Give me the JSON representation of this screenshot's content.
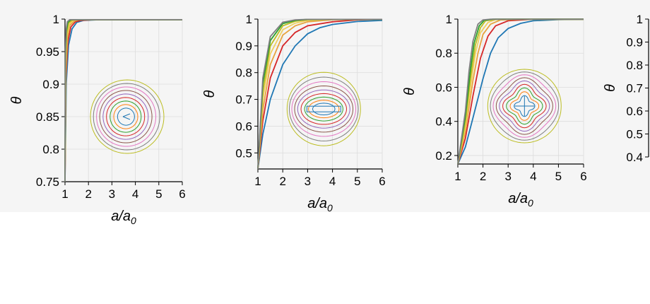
{
  "chart_data": [
    {
      "type": "line",
      "xlabel": "a/a",
      "xlabel_sub": "0",
      "ylabel": "θ",
      "xlim": [
        1,
        6
      ],
      "ylim": [
        0.75,
        1.0
      ],
      "xticks": [
        "1",
        "2",
        "3",
        "4",
        "5",
        "6"
      ],
      "yticks": [
        [
          "1",
          1.0
        ],
        [
          "0.95",
          0.95
        ],
        [
          "0.9",
          0.9
        ],
        [
          "0.85",
          0.85
        ],
        [
          "0.8",
          0.8
        ],
        [
          "0.75",
          0.75
        ]
      ],
      "grid": true,
      "inset": "heart",
      "series": [
        {
          "values": [
            [
              1,
              0.75
            ],
            [
              1.05,
              0.9
            ],
            [
              1.15,
              0.96
            ],
            [
              1.3,
              0.985
            ],
            [
              1.5,
              0.995
            ],
            [
              1.8,
              0.998
            ],
            [
              2.5,
              0.999
            ],
            [
              6,
              0.999
            ]
          ]
        },
        {
          "values": [
            [
              1,
              0.75
            ],
            [
              1.04,
              0.91
            ],
            [
              1.12,
              0.965
            ],
            [
              1.25,
              0.988
            ],
            [
              1.45,
              0.996
            ],
            [
              1.7,
              0.998
            ],
            [
              2.3,
              0.999
            ],
            [
              6,
              0.999
            ]
          ]
        },
        {
          "values": [
            [
              1,
              0.75
            ],
            [
              1.04,
              0.92
            ],
            [
              1.1,
              0.97
            ],
            [
              1.2,
              0.99
            ],
            [
              1.4,
              0.997
            ],
            [
              1.6,
              0.999
            ],
            [
              2.2,
              0.999
            ],
            [
              6,
              0.999
            ]
          ]
        },
        {
          "values": [
            [
              1,
              0.75
            ],
            [
              1.03,
              0.93
            ],
            [
              1.08,
              0.975
            ],
            [
              1.18,
              0.992
            ],
            [
              1.35,
              0.998
            ],
            [
              1.5,
              0.999
            ],
            [
              2,
              0.999
            ],
            [
              6,
              0.999
            ]
          ]
        },
        {
          "values": [
            [
              1,
              0.75
            ],
            [
              1.03,
              0.94
            ],
            [
              1.07,
              0.978
            ],
            [
              1.15,
              0.994
            ],
            [
              1.3,
              0.998
            ],
            [
              1.45,
              0.999
            ],
            [
              2,
              0.999
            ],
            [
              6,
              0.999
            ]
          ]
        },
        {
          "values": [
            [
              1,
              0.75
            ],
            [
              1.02,
              0.95
            ],
            [
              1.06,
              0.982
            ],
            [
              1.12,
              0.995
            ],
            [
              1.25,
              0.999
            ],
            [
              1.4,
              0.999
            ],
            [
              2,
              0.999
            ],
            [
              6,
              0.999
            ]
          ]
        },
        {
          "values": [
            [
              1,
              0.75
            ],
            [
              1.02,
              0.955
            ],
            [
              1.05,
              0.985
            ],
            [
              1.1,
              0.996
            ],
            [
              1.2,
              0.999
            ],
            [
              1.35,
              0.999
            ],
            [
              2,
              0.999
            ],
            [
              6,
              0.999
            ]
          ]
        }
      ]
    },
    {
      "type": "line",
      "xlabel": "a/a",
      "xlabel_sub": "0",
      "ylabel": "θ",
      "xlim": [
        1,
        6
      ],
      "ylim": [
        0.44,
        1.0
      ],
      "xticks": [
        "1",
        "2",
        "3",
        "4",
        "5",
        "6"
      ],
      "yticks": [
        [
          "1",
          1.0
        ],
        [
          "0.9",
          0.9
        ],
        [
          "0.8",
          0.8
        ],
        [
          "0.7",
          0.7
        ],
        [
          "0.6",
          0.6
        ],
        [
          "0.5",
          0.5
        ]
      ],
      "grid": true,
      "inset": "bar",
      "series": [
        {
          "values": [
            [
              1,
              0.44
            ],
            [
              1.2,
              0.57
            ],
            [
              1.5,
              0.7
            ],
            [
              2,
              0.83
            ],
            [
              2.5,
              0.9
            ],
            [
              3,
              0.945
            ],
            [
              3.5,
              0.968
            ],
            [
              4,
              0.98
            ],
            [
              5,
              0.991
            ],
            [
              6,
              0.995
            ]
          ]
        },
        {
          "values": [
            [
              1,
              0.44
            ],
            [
              1.2,
              0.62
            ],
            [
              1.5,
              0.78
            ],
            [
              2,
              0.9
            ],
            [
              2.5,
              0.95
            ],
            [
              3,
              0.975
            ],
            [
              4,
              0.99
            ],
            [
              5,
              0.997
            ],
            [
              6,
              0.999
            ]
          ]
        },
        {
          "values": [
            [
              1,
              0.44
            ],
            [
              1.2,
              0.66
            ],
            [
              1.5,
              0.83
            ],
            [
              2,
              0.94
            ],
            [
              2.5,
              0.975
            ],
            [
              3,
              0.99
            ],
            [
              4,
              0.998
            ],
            [
              6,
              0.999
            ]
          ]
        },
        {
          "values": [
            [
              1,
              0.44
            ],
            [
              1.2,
              0.7
            ],
            [
              1.5,
              0.87
            ],
            [
              2,
              0.96
            ],
            [
              2.5,
              0.985
            ],
            [
              3,
              0.995
            ],
            [
              4,
              0.999
            ],
            [
              6,
              0.999
            ]
          ]
        },
        {
          "values": [
            [
              1,
              0.44
            ],
            [
              1.2,
              0.73
            ],
            [
              1.5,
              0.9
            ],
            [
              2,
              0.975
            ],
            [
              2.5,
              0.992
            ],
            [
              3,
              0.998
            ],
            [
              4,
              0.999
            ],
            [
              6,
              0.999
            ]
          ]
        },
        {
          "values": [
            [
              1,
              0.44
            ],
            [
              1.2,
              0.76
            ],
            [
              1.5,
              0.92
            ],
            [
              2,
              0.983
            ],
            [
              2.5,
              0.995
            ],
            [
              3,
              0.999
            ],
            [
              6,
              0.999
            ]
          ]
        },
        {
          "values": [
            [
              1,
              0.44
            ],
            [
              1.2,
              0.78
            ],
            [
              1.5,
              0.935
            ],
            [
              2,
              0.988
            ],
            [
              2.5,
              0.997
            ],
            [
              3,
              0.999
            ],
            [
              6,
              0.999
            ]
          ]
        }
      ]
    },
    {
      "type": "line",
      "xlabel": "a/a",
      "xlabel_sub": "0",
      "ylabel": "θ",
      "xlim": [
        1,
        6
      ],
      "ylim": [
        0.15,
        1.0
      ],
      "xticks": [
        "1",
        "2",
        "3",
        "4",
        "5",
        "6"
      ],
      "yticks": [
        [
          "1",
          1.0
        ],
        [
          "0.8",
          0.8
        ],
        [
          "0.6",
          0.6
        ],
        [
          "0.4",
          0.4
        ],
        [
          "0.2",
          0.2
        ]
      ],
      "grid": true,
      "inset": "cross",
      "series": [
        {
          "values": [
            [
              1,
              0.15
            ],
            [
              1.3,
              0.25
            ],
            [
              1.6,
              0.42
            ],
            [
              2,
              0.65
            ],
            [
              2.3,
              0.8
            ],
            [
              2.6,
              0.89
            ],
            [
              3,
              0.945
            ],
            [
              3.5,
              0.975
            ],
            [
              4,
              0.99
            ],
            [
              5,
              0.997
            ],
            [
              6,
              0.999
            ]
          ]
        },
        {
          "values": [
            [
              1,
              0.15
            ],
            [
              1.3,
              0.3
            ],
            [
              1.6,
              0.55
            ],
            [
              1.9,
              0.77
            ],
            [
              2.2,
              0.9
            ],
            [
              2.5,
              0.96
            ],
            [
              3,
              0.99
            ],
            [
              4,
              0.999
            ],
            [
              6,
              0.999
            ]
          ]
        },
        {
          "values": [
            [
              1,
              0.15
            ],
            [
              1.3,
              0.34
            ],
            [
              1.6,
              0.64
            ],
            [
              1.8,
              0.8
            ],
            [
              2,
              0.91
            ],
            [
              2.3,
              0.97
            ],
            [
              2.7,
              0.995
            ],
            [
              3.5,
              0.999
            ],
            [
              6,
              0.999
            ]
          ]
        },
        {
          "values": [
            [
              1,
              0.15
            ],
            [
              1.3,
              0.37
            ],
            [
              1.5,
              0.6
            ],
            [
              1.7,
              0.8
            ],
            [
              1.9,
              0.92
            ],
            [
              2.2,
              0.98
            ],
            [
              2.5,
              0.997
            ],
            [
              3,
              0.999
            ],
            [
              6,
              0.999
            ]
          ]
        },
        {
          "values": [
            [
              1,
              0.15
            ],
            [
              1.3,
              0.4
            ],
            [
              1.5,
              0.65
            ],
            [
              1.7,
              0.85
            ],
            [
              1.9,
              0.95
            ],
            [
              2.1,
              0.99
            ],
            [
              2.5,
              0.999
            ],
            [
              6,
              0.999
            ]
          ]
        },
        {
          "values": [
            [
              1,
              0.15
            ],
            [
              1.3,
              0.43
            ],
            [
              1.5,
              0.7
            ],
            [
              1.65,
              0.86
            ],
            [
              1.85,
              0.96
            ],
            [
              2.05,
              0.993
            ],
            [
              2.4,
              0.999
            ],
            [
              6,
              0.999
            ]
          ]
        },
        {
          "values": [
            [
              1,
              0.15
            ],
            [
              1.3,
              0.46
            ],
            [
              1.45,
              0.7
            ],
            [
              1.6,
              0.87
            ],
            [
              1.8,
              0.97
            ],
            [
              2,
              0.995
            ],
            [
              2.3,
              0.999
            ],
            [
              6,
              0.999
            ]
          ]
        }
      ]
    },
    {
      "type": "line",
      "ylabel": "θ",
      "ylim": [
        0.4,
        1.0
      ],
      "yticks": [
        [
          "1",
          1.0
        ],
        [
          "0.9",
          0.9
        ],
        [
          "0.8",
          0.8
        ],
        [
          "0.7",
          0.7
        ],
        [
          "0.6",
          0.6
        ],
        [
          "0.5",
          0.5
        ],
        [
          "0.4",
          0.4
        ]
      ],
      "series": []
    }
  ],
  "colors": {
    "background": "#f5f5f5",
    "grid": "#dcdcdc",
    "series": [
      "#1f77b4",
      "#d62728",
      "#e8a33d",
      "#f0d060",
      "#bcbd22",
      "#2ca02c",
      "#7f7f7f"
    ],
    "contours": [
      "#1f77b4",
      "#ff7f0e",
      "#2ca02c",
      "#d62728",
      "#9467bd",
      "#8c564b",
      "#e377c2",
      "#7f7f7f",
      "#bcbd22",
      "#17becf"
    ]
  }
}
